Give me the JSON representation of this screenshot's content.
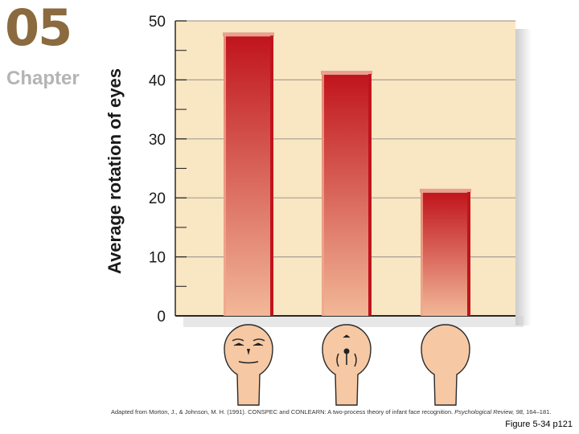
{
  "header": {
    "chapter_number": "05",
    "chapter_label": "Chapter"
  },
  "chart_data": {
    "type": "bar",
    "categories": [
      "face",
      "scrambled face",
      "blank"
    ],
    "values": [
      47.5,
      41,
      21
    ],
    "ylabel": "Average rotation of eyes",
    "ylim": [
      0,
      50
    ],
    "yticks": [
      0,
      10,
      20,
      30,
      40,
      50
    ],
    "grid": true,
    "colors": {
      "plot_bg": "#f9e6c3",
      "bar_top": "#c0141c",
      "bar_bottom": "#f2b898",
      "grid": "#a89f95",
      "face_skin": "#f6c9a4"
    }
  },
  "footer": {
    "citation_prefix": "Adapted from Morton, J., & Johnson, M. H. (1991). CONSPEC and CONLEARN: A two-process theory of infant face recognition. ",
    "citation_journal": "Psychological Review, 98,",
    "citation_pages": " 164–181.",
    "figure_ref": "Figure 5-34 p121"
  }
}
